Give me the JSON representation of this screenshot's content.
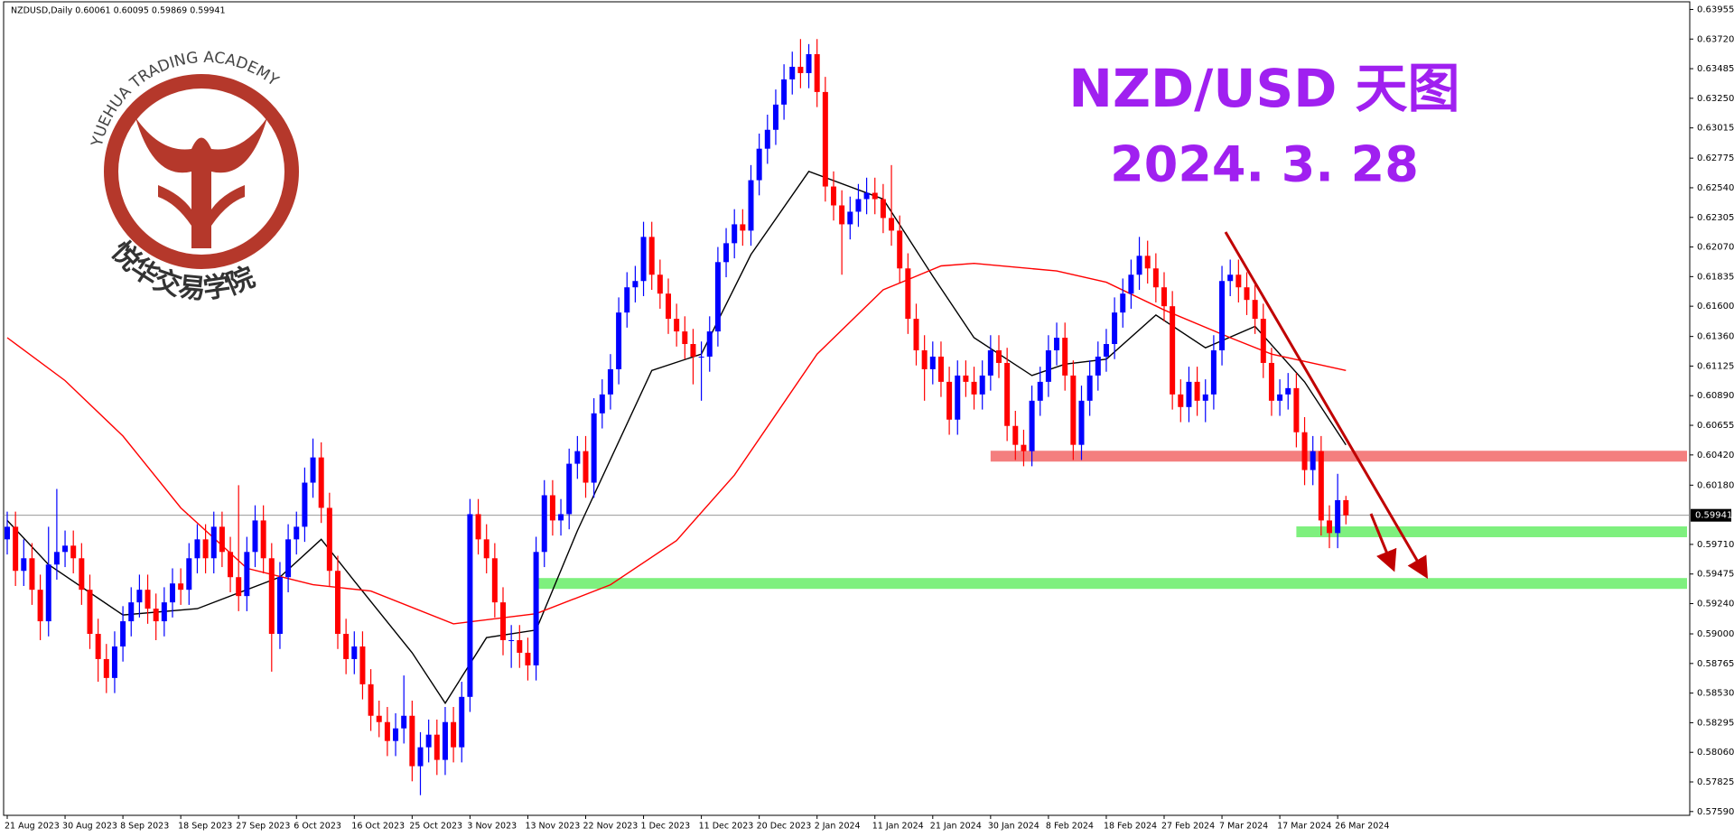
{
  "chart_data": {
    "type": "candlestick",
    "header": "NZDUSD,Daily  0.60061 0.60095 0.59869 0.59941",
    "title": "NZD/USD 天图",
    "subtitle": "2024. 3. 28",
    "logo_text": "YUEHUA TRADING ACADEMY",
    "logo_text_cn": "悦华交易学院",
    "up_color": "#0000ff",
    "down_color": "#ff0000",
    "ylim": [
      0.5756,
      0.6403
    ],
    "yticks": [
      0.63955,
      {
        "value": 0.6372,
        "label": "0.63720"
      },
      0.63485,
      {
        "value": 0.6325,
        "label": "0.63250"
      },
      0.63015,
      0.62775,
      {
        "value": 0.6254,
        "label": "0.62540"
      },
      0.62305,
      {
        "value": 0.6207,
        "label": "0.62070"
      },
      0.61835,
      {
        "value": 0.616,
        "label": "0.61600"
      },
      {
        "value": 0.6136,
        "label": "0.61360"
      },
      0.61125,
      {
        "value": 0.6089,
        "label": "0.60890"
      },
      0.60655,
      {
        "value": 0.6042,
        "label": "0.60420"
      },
      {
        "value": 0.6018,
        "label": "0.60180"
      },
      {
        "value": 0.5971,
        "label": "0.59710"
      },
      0.59475,
      {
        "value": 0.5924,
        "label": "0.59240"
      },
      {
        "value": 0.59,
        "label": "0.59000"
      },
      0.58765,
      {
        "value": 0.5853,
        "label": "0.58530"
      },
      0.58295,
      {
        "value": 0.5806,
        "label": "0.58060"
      },
      0.57825,
      {
        "value": 0.5759,
        "label": "0.57590"
      }
    ],
    "last_price": 0.59941,
    "categories": [
      "21 Aug 2023",
      null,
      null,
      null,
      null,
      null,
      null,
      "30 Aug 2023",
      null,
      null,
      null,
      null,
      null,
      null,
      "8 Sep 2023",
      null,
      null,
      null,
      null,
      null,
      null,
      "18 Sep 2023",
      null,
      null,
      null,
      null,
      null,
      null,
      "27 Sep 2023",
      null,
      null,
      null,
      null,
      null,
      null,
      "6 Oct 2023",
      null,
      null,
      null,
      null,
      null,
      null,
      "16 Oct 2023",
      null,
      null,
      null,
      null,
      null,
      null,
      "25 Oct 2023",
      null,
      null,
      null,
      null,
      null,
      null,
      "3 Nov 2023",
      null,
      null,
      null,
      null,
      null,
      null,
      "13 Nov 2023",
      null,
      null,
      null,
      null,
      null,
      null,
      "22 Nov 2023",
      null,
      null,
      null,
      null,
      null,
      null,
      "1 Dec 2023",
      null,
      null,
      null,
      null,
      null,
      null,
      "11 Dec 2023",
      null,
      null,
      null,
      null,
      null,
      null,
      "20 Dec 2023",
      null,
      null,
      null,
      null,
      null,
      null,
      "2 Jan 2024",
      null,
      null,
      null,
      null,
      null,
      null,
      "11 Jan 2024",
      null,
      null,
      null,
      null,
      null,
      null,
      "21 Jan 2024",
      null,
      null,
      null,
      null,
      null,
      null,
      "30 Jan 2024",
      null,
      null,
      null,
      null,
      null,
      null,
      "8 Feb 2024",
      null,
      null,
      null,
      null,
      null,
      null,
      "18 Feb 2024",
      null,
      null,
      null,
      null,
      null,
      null,
      "27 Feb 2024",
      null,
      null,
      null,
      null,
      null,
      null,
      "7 Mar 2024",
      null,
      null,
      null,
      null,
      null,
      null,
      "17 Mar 2024",
      null,
      null,
      null,
      null,
      null,
      null,
      "26 Mar 2024",
      null
    ],
    "ohlc": [
      [
        0.5975,
        0.5997,
        0.5963,
        0.5985
      ],
      [
        0.5985,
        0.5997,
        0.5938,
        0.595
      ],
      [
        0.595,
        0.5975,
        0.5938,
        0.596
      ],
      [
        0.596,
        0.5972,
        0.5923,
        0.5935
      ],
      [
        0.5935,
        0.5947,
        0.5895,
        0.591
      ],
      [
        0.591,
        0.5985,
        0.5898,
        0.5955
      ],
      [
        0.5955,
        0.6015,
        0.5943,
        0.5965
      ],
      [
        0.5965,
        0.5982,
        0.5953,
        0.597
      ],
      [
        0.597,
        0.5982,
        0.5948,
        0.596
      ],
      [
        0.596,
        0.5972,
        0.5923,
        0.5935
      ],
      [
        0.5935,
        0.5947,
        0.5888,
        0.59
      ],
      [
        0.59,
        0.5912,
        0.5862,
        0.588
      ],
      [
        0.588,
        0.5892,
        0.5853,
        0.5865
      ],
      [
        0.5865,
        0.5902,
        0.5853,
        0.589
      ],
      [
        0.589,
        0.5922,
        0.5878,
        0.591
      ],
      [
        0.591,
        0.5937,
        0.5898,
        0.5925
      ],
      [
        0.5925,
        0.5947,
        0.5913,
        0.5935
      ],
      [
        0.5935,
        0.5947,
        0.5908,
        0.592
      ],
      [
        0.592,
        0.5932,
        0.5895,
        0.591
      ],
      [
        0.591,
        0.5937,
        0.5898,
        0.5925
      ],
      [
        0.5925,
        0.5952,
        0.5913,
        0.594
      ],
      [
        0.594,
        0.5952,
        0.5923,
        0.5935
      ],
      [
        0.5935,
        0.5972,
        0.5923,
        0.596
      ],
      [
        0.596,
        0.5987,
        0.5948,
        0.5975
      ],
      [
        0.5975,
        0.5987,
        0.5948,
        0.596
      ],
      [
        0.596,
        0.5997,
        0.5948,
        0.5985
      ],
      [
        0.5985,
        0.5997,
        0.5953,
        0.5965
      ],
      [
        0.5965,
        0.5977,
        0.5933,
        0.5945
      ],
      [
        0.5945,
        0.6018,
        0.5918,
        0.593
      ],
      [
        0.593,
        0.5977,
        0.5918,
        0.5965
      ],
      [
        0.5965,
        0.6002,
        0.5953,
        0.599
      ],
      [
        0.599,
        0.6002,
        0.5948,
        0.596
      ],
      [
        0.596,
        0.5972,
        0.587,
        0.59
      ],
      [
        0.59,
        0.5957,
        0.5888,
        0.5945
      ],
      [
        0.5945,
        0.5987,
        0.5933,
        0.5975
      ],
      [
        0.5975,
        0.5997,
        0.5963,
        0.5985
      ],
      [
        0.5985,
        0.6032,
        0.5973,
        0.602
      ],
      [
        0.602,
        0.6055,
        0.6008,
        0.604
      ],
      [
        0.604,
        0.6052,
        0.5988,
        0.6
      ],
      [
        0.6,
        0.6012,
        0.5938,
        0.595
      ],
      [
        0.595,
        0.5962,
        0.5888,
        0.59
      ],
      [
        0.59,
        0.5912,
        0.5868,
        0.588
      ],
      [
        0.588,
        0.5902,
        0.5868,
        0.589
      ],
      [
        0.589,
        0.5902,
        0.5848,
        0.586
      ],
      [
        0.586,
        0.5872,
        0.5823,
        0.5835
      ],
      [
        0.5835,
        0.5847,
        0.5818,
        0.583
      ],
      [
        0.583,
        0.5842,
        0.5803,
        0.5815
      ],
      [
        0.5815,
        0.5837,
        0.5803,
        0.5825
      ],
      [
        0.5825,
        0.5867,
        0.5813,
        0.5835
      ],
      [
        0.5835,
        0.5847,
        0.5783,
        0.5795
      ],
      [
        0.5795,
        0.5822,
        0.5772,
        0.581
      ],
      [
        0.581,
        0.5832,
        0.5798,
        0.582
      ],
      [
        0.582,
        0.5832,
        0.5788,
        0.58
      ],
      [
        0.58,
        0.5842,
        0.5788,
        0.583
      ],
      [
        0.583,
        0.5842,
        0.5798,
        0.581
      ],
      [
        0.581,
        0.5862,
        0.5798,
        0.585
      ],
      [
        0.585,
        0.6007,
        0.5838,
        0.5995
      ],
      [
        0.5995,
        0.6007,
        0.5963,
        0.5975
      ],
      [
        0.5975,
        0.5987,
        0.5948,
        0.596
      ],
      [
        0.596,
        0.5972,
        0.5913,
        0.5925
      ],
      [
        0.5925,
        0.5937,
        0.5883,
        0.5895
      ],
      [
        0.5895,
        0.5907,
        0.5873,
        0.5895
      ],
      [
        0.5895,
        0.5907,
        0.5873,
        0.5885
      ],
      [
        0.5885,
        0.5897,
        0.5863,
        0.5875
      ],
      [
        0.5875,
        0.5977,
        0.5863,
        0.5965
      ],
      [
        0.5965,
        0.6022,
        0.5953,
        0.601
      ],
      [
        0.601,
        0.6022,
        0.5978,
        0.599
      ],
      [
        0.599,
        0.6007,
        0.5978,
        0.5995
      ],
      [
        0.5995,
        0.6047,
        0.5983,
        0.6035
      ],
      [
        0.6035,
        0.6057,
        0.6023,
        0.6045
      ],
      [
        0.6045,
        0.6057,
        0.6008,
        0.602
      ],
      [
        0.602,
        0.6087,
        0.6008,
        0.6075
      ],
      [
        0.6075,
        0.6102,
        0.6063,
        0.609
      ],
      [
        0.609,
        0.6122,
        0.6078,
        0.611
      ],
      [
        0.611,
        0.6167,
        0.6098,
        0.6155
      ],
      [
        0.6155,
        0.6187,
        0.6143,
        0.6175
      ],
      [
        0.6175,
        0.6192,
        0.6163,
        0.618
      ],
      [
        0.618,
        0.6227,
        0.6168,
        0.6215
      ],
      [
        0.6215,
        0.6227,
        0.6173,
        0.6185
      ],
      [
        0.6185,
        0.6197,
        0.6158,
        0.617
      ],
      [
        0.617,
        0.6182,
        0.6138,
        0.615
      ],
      [
        0.615,
        0.6162,
        0.6128,
        0.614
      ],
      [
        0.614,
        0.6152,
        0.6118,
        0.613
      ],
      [
        0.613,
        0.6142,
        0.6098,
        0.612
      ],
      [
        0.612,
        0.6132,
        0.6085,
        0.612
      ],
      [
        0.612,
        0.6152,
        0.6108,
        0.614
      ],
      [
        0.614,
        0.6207,
        0.6128,
        0.6195
      ],
      [
        0.6195,
        0.6222,
        0.6183,
        0.621
      ],
      [
        0.621,
        0.6237,
        0.6198,
        0.6225
      ],
      [
        0.6225,
        0.6237,
        0.6208,
        0.622
      ],
      [
        0.622,
        0.6272,
        0.6208,
        0.626
      ],
      [
        0.626,
        0.6297,
        0.6248,
        0.6285
      ],
      [
        0.6285,
        0.6312,
        0.6273,
        0.63
      ],
      [
        0.63,
        0.6332,
        0.6288,
        0.632
      ],
      [
        0.632,
        0.6352,
        0.6308,
        0.634
      ],
      [
        0.634,
        0.6362,
        0.6328,
        0.635
      ],
      [
        0.635,
        0.6372,
        0.6333,
        0.6345
      ],
      [
        0.6345,
        0.6368,
        0.6333,
        0.636
      ],
      [
        0.636,
        0.6372,
        0.6318,
        0.633
      ],
      [
        0.633,
        0.6342,
        0.6243,
        0.6255
      ],
      [
        0.6255,
        0.6267,
        0.6228,
        0.624
      ],
      [
        0.624,
        0.6252,
        0.6185,
        0.6225
      ],
      [
        0.6225,
        0.6247,
        0.6213,
        0.6235
      ],
      [
        0.6235,
        0.6257,
        0.6223,
        0.6245
      ],
      [
        0.6245,
        0.6262,
        0.6233,
        0.625
      ],
      [
        0.625,
        0.6262,
        0.6233,
        0.6245
      ],
      [
        0.6245,
        0.6257,
        0.6218,
        0.623
      ],
      [
        0.623,
        0.6272,
        0.6208,
        0.622
      ],
      [
        0.622,
        0.6232,
        0.6178,
        0.619
      ],
      [
        0.619,
        0.6202,
        0.6138,
        0.615
      ],
      [
        0.615,
        0.6162,
        0.6113,
        0.6125
      ],
      [
        0.6125,
        0.6137,
        0.6085,
        0.611
      ],
      [
        0.611,
        0.6132,
        0.6098,
        0.612
      ],
      [
        0.612,
        0.6132,
        0.6088,
        0.61
      ],
      [
        0.61,
        0.6112,
        0.6058,
        0.607
      ],
      [
        0.607,
        0.6117,
        0.6058,
        0.6105
      ],
      [
        0.6105,
        0.6117,
        0.6088,
        0.61
      ],
      [
        0.61,
        0.6112,
        0.6078,
        0.609
      ],
      [
        0.609,
        0.6117,
        0.6078,
        0.6105
      ],
      [
        0.6105,
        0.6137,
        0.6093,
        0.6125
      ],
      [
        0.6125,
        0.6137,
        0.6103,
        0.6115
      ],
      [
        0.6115,
        0.6127,
        0.6053,
        0.6065
      ],
      [
        0.6065,
        0.6077,
        0.6038,
        0.605
      ],
      [
        0.605,
        0.6062,
        0.6033,
        0.6045
      ],
      [
        0.6045,
        0.6097,
        0.6033,
        0.6085
      ],
      [
        0.6085,
        0.6112,
        0.6073,
        0.61
      ],
      [
        0.61,
        0.6137,
        0.6088,
        0.6125
      ],
      [
        0.6125,
        0.6147,
        0.6113,
        0.6135
      ],
      [
        0.6135,
        0.6147,
        0.6093,
        0.6105
      ],
      [
        0.6105,
        0.6117,
        0.6038,
        0.605
      ],
      [
        0.605,
        0.6097,
        0.6038,
        0.6085
      ],
      [
        0.6085,
        0.6117,
        0.6073,
        0.6105
      ],
      [
        0.6105,
        0.6132,
        0.6093,
        0.612
      ],
      [
        0.612,
        0.6142,
        0.6108,
        0.613
      ],
      [
        0.613,
        0.6167,
        0.6118,
        0.6155
      ],
      [
        0.6155,
        0.6182,
        0.6143,
        0.617
      ],
      [
        0.617,
        0.6197,
        0.6158,
        0.6185
      ],
      [
        0.6185,
        0.6215,
        0.6173,
        0.62
      ],
      [
        0.62,
        0.6212,
        0.6178,
        0.619
      ],
      [
        0.619,
        0.6202,
        0.6163,
        0.6175
      ],
      [
        0.6175,
        0.6187,
        0.6148,
        0.616
      ],
      [
        0.616,
        0.6172,
        0.6078,
        0.609
      ],
      [
        0.609,
        0.6102,
        0.6068,
        0.608
      ],
      [
        0.608,
        0.6112,
        0.6068,
        0.61
      ],
      [
        0.61,
        0.6112,
        0.6073,
        0.6085
      ],
      [
        0.6085,
        0.6102,
        0.6068,
        0.609
      ],
      [
        0.609,
        0.6137,
        0.6078,
        0.6125
      ],
      [
        0.6125,
        0.6192,
        0.6113,
        0.618
      ],
      [
        0.618,
        0.6197,
        0.6168,
        0.6185
      ],
      [
        0.6185,
        0.6197,
        0.6163,
        0.6175
      ],
      [
        0.6175,
        0.6187,
        0.6153,
        0.6165
      ],
      [
        0.6165,
        0.6177,
        0.6138,
        0.615
      ],
      [
        0.615,
        0.6162,
        0.6103,
        0.6115
      ],
      [
        0.6115,
        0.6127,
        0.6073,
        0.6085
      ],
      [
        0.6085,
        0.6102,
        0.6073,
        0.609
      ],
      [
        0.609,
        0.6107,
        0.6078,
        0.6095
      ],
      [
        0.6095,
        0.6107,
        0.6048,
        0.606
      ],
      [
        0.606,
        0.6072,
        0.6018,
        0.603
      ],
      [
        0.603,
        0.6057,
        0.6018,
        0.6045
      ],
      [
        0.6045,
        0.6057,
        0.5978,
        0.599
      ],
      [
        0.599,
        0.6002,
        0.5968,
        0.598
      ],
      [
        0.598,
        0.6027,
        0.5968,
        0.60061
      ],
      [
        0.60061,
        0.60095,
        0.59869,
        0.59941
      ]
    ],
    "lines": [
      {
        "color": "#000000",
        "x": [
          0,
          5,
          14,
          23,
          33,
          38,
          42,
          49,
          53,
          58,
          64,
          69,
          78,
          84,
          90,
          97,
          106,
          112,
          117,
          124,
          128,
          133,
          139,
          145,
          151,
          157,
          162
        ],
        "values": [
          0.599,
          0.5955,
          0.5915,
          0.592,
          0.5945,
          0.5975,
          0.5942,
          0.5885,
          0.5845,
          0.5897,
          0.5903,
          0.5982,
          0.6109,
          0.6122,
          0.6201,
          0.6267,
          0.6245,
          0.6184,
          0.6135,
          0.6105,
          0.6114,
          0.6118,
          0.6153,
          0.6127,
          0.6144,
          0.61,
          0.605
        ]
      },
      {
        "color": "#ff0000",
        "x": [
          0,
          7,
          14,
          21,
          29,
          37,
          44,
          54,
          64,
          73,
          81,
          88,
          93,
          98,
          106,
          113,
          117,
          127,
          133,
          140,
          148,
          153,
          162
        ],
        "values": [
          0.6135,
          0.6101,
          0.6057,
          0.6,
          0.5952,
          0.5939,
          0.5934,
          0.5908,
          0.5916,
          0.5939,
          0.5974,
          0.6026,
          0.6074,
          0.6122,
          0.6173,
          0.6192,
          0.6194,
          0.6188,
          0.6179,
          0.6157,
          0.6135,
          0.6122,
          0.6109
        ]
      }
    ],
    "zones": [
      {
        "value": 0.6041,
        "start": 119,
        "color": "#f47f7f"
      },
      {
        "value": 0.5981,
        "start": 156,
        "color": "#7ef07e"
      },
      {
        "value": 0.594,
        "start": 64,
        "color": "#7ef07e"
      }
    ]
  }
}
